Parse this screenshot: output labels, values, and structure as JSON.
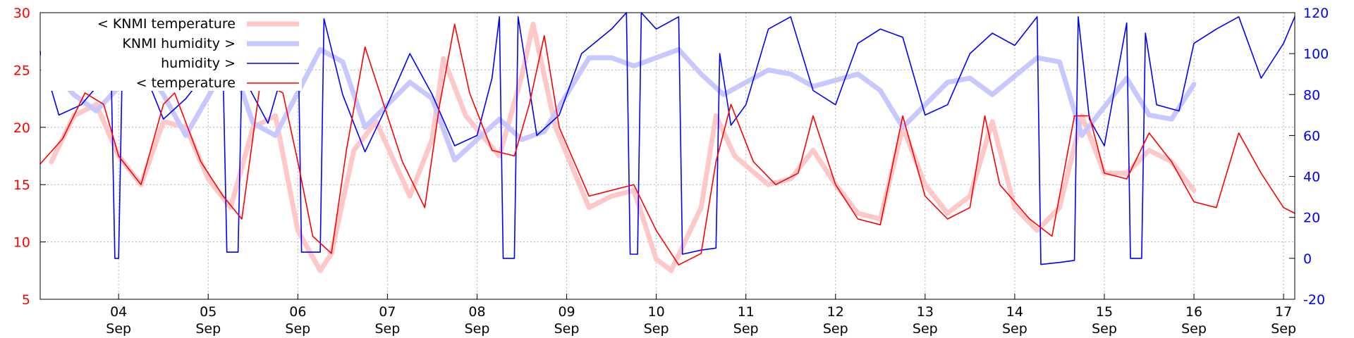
{
  "chart_data": {
    "type": "line",
    "title": "",
    "grid": true,
    "legend_placement": "top-left",
    "x_range": [
      "2023-09-03 03:00",
      "2023-09-17 03:00"
    ],
    "x_ticks": [
      {
        "date": "2023-09-04",
        "day": "04",
        "month": "Sep"
      },
      {
        "date": "2023-09-05",
        "day": "05",
        "month": "Sep"
      },
      {
        "date": "2023-09-06",
        "day": "06",
        "month": "Sep"
      },
      {
        "date": "2023-09-07",
        "day": "07",
        "month": "Sep"
      },
      {
        "date": "2023-09-08",
        "day": "08",
        "month": "Sep"
      },
      {
        "date": "2023-09-09",
        "day": "09",
        "month": "Sep"
      },
      {
        "date": "2023-09-10",
        "day": "10",
        "month": "Sep"
      },
      {
        "date": "2023-09-11",
        "day": "11",
        "month": "Sep"
      },
      {
        "date": "2023-09-12",
        "day": "12",
        "month": "Sep"
      },
      {
        "date": "2023-09-13",
        "day": "13",
        "month": "Sep"
      },
      {
        "date": "2023-09-14",
        "day": "14",
        "month": "Sep"
      },
      {
        "date": "2023-09-15",
        "day": "15",
        "month": "Sep"
      },
      {
        "date": "2023-09-16",
        "day": "16",
        "month": "Sep"
      },
      {
        "date": "2023-09-17",
        "day": "17",
        "month": "Sep"
      }
    ],
    "y_left": {
      "ylim": [
        5,
        30
      ],
      "ticks": [
        5,
        10,
        15,
        20,
        25,
        30
      ],
      "color": "#ff0000"
    },
    "y_right": {
      "ylim": [
        -20,
        120
      ],
      "ticks": [
        -20,
        0,
        20,
        40,
        60,
        80,
        100,
        120
      ],
      "color": "#0000ff"
    },
    "series": [
      {
        "name": "< KNMI temperature",
        "axis": "left",
        "color": "#ffc8c8",
        "style": "thick",
        "points": [
          [
            "2023-09-03 06:00",
            17
          ],
          [
            "2023-09-03 12:00",
            21
          ],
          [
            "2023-09-03 18:00",
            22
          ],
          [
            "2023-09-04 00:00",
            17.5
          ],
          [
            "2023-09-04 06:00",
            15
          ],
          [
            "2023-09-04 12:00",
            20.5
          ],
          [
            "2023-09-04 18:00",
            20
          ],
          [
            "2023-09-05 00:00",
            15.5
          ],
          [
            "2023-09-05 06:00",
            13
          ],
          [
            "2023-09-05 12:00",
            20
          ],
          [
            "2023-09-05 18:00",
            21
          ],
          [
            "2023-09-06 00:00",
            11
          ],
          [
            "2023-09-06 06:00",
            7.5
          ],
          [
            "2023-09-06 09:00",
            9
          ],
          [
            "2023-09-06 15:00",
            18
          ],
          [
            "2023-09-06 21:00",
            20.5
          ],
          [
            "2023-09-07 06:00",
            14
          ],
          [
            "2023-09-07 12:00",
            19
          ],
          [
            "2023-09-07 15:00",
            26
          ],
          [
            "2023-09-07 21:00",
            21
          ],
          [
            "2023-09-08 06:00",
            17.5
          ],
          [
            "2023-09-08 12:00",
            24.5
          ],
          [
            "2023-09-08 15:00",
            29
          ],
          [
            "2023-09-08 21:00",
            20
          ],
          [
            "2023-09-09 06:00",
            13
          ],
          [
            "2023-09-09 12:00",
            14
          ],
          [
            "2023-09-09 18:00",
            14.5
          ],
          [
            "2023-09-10 00:00",
            8.5
          ],
          [
            "2023-09-10 04:00",
            7.5
          ],
          [
            "2023-09-10 12:00",
            13
          ],
          [
            "2023-09-10 16:00",
            21
          ],
          [
            "2023-09-10 21:00",
            17.5
          ],
          [
            "2023-09-11 06:00",
            15
          ],
          [
            "2023-09-11 12:00",
            15.5
          ],
          [
            "2023-09-11 18:00",
            18
          ],
          [
            "2023-09-12 00:00",
            15
          ],
          [
            "2023-09-12 06:00",
            12.5
          ],
          [
            "2023-09-12 12:00",
            12
          ],
          [
            "2023-09-12 18:00",
            20
          ],
          [
            "2023-09-13 00:00",
            15
          ],
          [
            "2023-09-13 06:00",
            12.5
          ],
          [
            "2023-09-13 12:00",
            14
          ],
          [
            "2023-09-13 18:00",
            20.5
          ],
          [
            "2023-09-14 00:00",
            13
          ],
          [
            "2023-09-14 06:00",
            11
          ],
          [
            "2023-09-14 12:00",
            13
          ],
          [
            "2023-09-14 18:00",
            21
          ],
          [
            "2023-09-15 00:00",
            16
          ],
          [
            "2023-09-15 06:00",
            16
          ],
          [
            "2023-09-15 12:00",
            18
          ],
          [
            "2023-09-15 18:00",
            17
          ],
          [
            "2023-09-16 00:00",
            14.5
          ]
        ]
      },
      {
        "name": "KNMI humidity >",
        "axis": "right",
        "color": "#c8c8ff",
        "style": "thick",
        "points": [
          [
            "2023-09-03 06:00",
            92
          ],
          [
            "2023-09-03 12:00",
            80
          ],
          [
            "2023-09-03 18:00",
            72
          ],
          [
            "2023-09-04 06:00",
            95
          ],
          [
            "2023-09-04 12:00",
            80
          ],
          [
            "2023-09-04 18:00",
            60
          ],
          [
            "2023-09-05 06:00",
            98
          ],
          [
            "2023-09-05 12:00",
            66
          ],
          [
            "2023-09-05 18:00",
            60
          ],
          [
            "2023-09-06 06:00",
            102
          ],
          [
            "2023-09-06 12:00",
            96
          ],
          [
            "2023-09-06 18:00",
            64
          ],
          [
            "2023-09-07 06:00",
            86
          ],
          [
            "2023-09-07 12:00",
            78
          ],
          [
            "2023-09-07 18:00",
            48
          ],
          [
            "2023-09-08 06:00",
            68
          ],
          [
            "2023-09-08 12:00",
            58
          ],
          [
            "2023-09-08 18:00",
            62
          ],
          [
            "2023-09-09 06:00",
            98
          ],
          [
            "2023-09-09 12:00",
            98
          ],
          [
            "2023-09-09 18:00",
            94
          ],
          [
            "2023-09-10 06:00",
            102
          ],
          [
            "2023-09-10 12:00",
            90
          ],
          [
            "2023-09-10 18:00",
            80
          ],
          [
            "2023-09-11 06:00",
            92
          ],
          [
            "2023-09-11 12:00",
            90
          ],
          [
            "2023-09-11 18:00",
            84
          ],
          [
            "2023-09-12 06:00",
            90
          ],
          [
            "2023-09-12 12:00",
            82
          ],
          [
            "2023-09-12 18:00",
            64
          ],
          [
            "2023-09-13 06:00",
            86
          ],
          [
            "2023-09-13 12:00",
            88
          ],
          [
            "2023-09-13 18:00",
            80
          ],
          [
            "2023-09-14 06:00",
            98
          ],
          [
            "2023-09-14 12:00",
            96
          ],
          [
            "2023-09-14 18:00",
            60
          ],
          [
            "2023-09-15 06:00",
            88
          ],
          [
            "2023-09-15 12:00",
            70
          ],
          [
            "2023-09-15 18:00",
            68
          ],
          [
            "2023-09-16 00:00",
            85
          ]
        ]
      },
      {
        "name": "humidity >",
        "axis": "right",
        "color": "#0000ff",
        "style": "thin",
        "points": [
          [
            "2023-09-03 03:00",
            101
          ],
          [
            "2023-09-03 08:00",
            70
          ],
          [
            "2023-09-03 14:00",
            75
          ],
          [
            "2023-09-03 22:00",
            92
          ],
          [
            "2023-09-03 23:00",
            0
          ],
          [
            "2023-09-04 00:00",
            0
          ],
          [
            "2023-09-04 01:00",
            96
          ],
          [
            "2023-09-04 06:00",
            95
          ],
          [
            "2023-09-04 12:00",
            68
          ],
          [
            "2023-09-04 18:00",
            78
          ],
          [
            "2023-09-05 00:00",
            92
          ],
          [
            "2023-09-05 04:00",
            90
          ],
          [
            "2023-09-05 05:00",
            3
          ],
          [
            "2023-09-05 08:00",
            3
          ],
          [
            "2023-09-05 09:00",
            90
          ],
          [
            "2023-09-05 16:00",
            66
          ],
          [
            "2023-09-06 00:00",
            117
          ],
          [
            "2023-09-06 01:00",
            3
          ],
          [
            "2023-09-06 06:00",
            3
          ],
          [
            "2023-09-06 07:00",
            117
          ],
          [
            "2023-09-06 12:00",
            80
          ],
          [
            "2023-09-06 18:00",
            52
          ],
          [
            "2023-09-07 00:00",
            75
          ],
          [
            "2023-09-07 06:00",
            100
          ],
          [
            "2023-09-07 12:00",
            80
          ],
          [
            "2023-09-07 18:00",
            55
          ],
          [
            "2023-09-08 00:00",
            60
          ],
          [
            "2023-09-08 04:00",
            88
          ],
          [
            "2023-09-08 06:00",
            118
          ],
          [
            "2023-09-08 07:00",
            0
          ],
          [
            "2023-09-08 10:00",
            0
          ],
          [
            "2023-09-08 11:00",
            118
          ],
          [
            "2023-09-08 16:00",
            60
          ],
          [
            "2023-09-08 22:00",
            70
          ],
          [
            "2023-09-09 04:00",
            100
          ],
          [
            "2023-09-09 12:00",
            112
          ],
          [
            "2023-09-09 16:00",
            120
          ],
          [
            "2023-09-09 17:00",
            2
          ],
          [
            "2023-09-09 19:00",
            2
          ],
          [
            "2023-09-09 20:00",
            120
          ],
          [
            "2023-09-10 00:00",
            112
          ],
          [
            "2023-09-10 06:00",
            118
          ],
          [
            "2023-09-10 07:00",
            2
          ],
          [
            "2023-09-10 12:00",
            4
          ],
          [
            "2023-09-10 16:00",
            5
          ],
          [
            "2023-09-10 17:00",
            100
          ],
          [
            "2023-09-10 20:00",
            65
          ],
          [
            "2023-09-11 00:00",
            75
          ],
          [
            "2023-09-11 06:00",
            112
          ],
          [
            "2023-09-11 12:00",
            118
          ],
          [
            "2023-09-11 18:00",
            82
          ],
          [
            "2023-09-12 00:00",
            75
          ],
          [
            "2023-09-12 06:00",
            105
          ],
          [
            "2023-09-12 12:00",
            112
          ],
          [
            "2023-09-12 18:00",
            108
          ],
          [
            "2023-09-13 00:00",
            70
          ],
          [
            "2023-09-13 06:00",
            75
          ],
          [
            "2023-09-13 12:00",
            100
          ],
          [
            "2023-09-13 18:00",
            110
          ],
          [
            "2023-09-14 00:00",
            104
          ],
          [
            "2023-09-14 06:00",
            118
          ],
          [
            "2023-09-14 07:00",
            -3
          ],
          [
            "2023-09-14 12:00",
            -2
          ],
          [
            "2023-09-14 16:00",
            -1
          ],
          [
            "2023-09-14 17:00",
            118
          ],
          [
            "2023-09-14 20:00",
            68
          ],
          [
            "2023-09-15 00:00",
            55
          ],
          [
            "2023-09-15 06:00",
            115
          ],
          [
            "2023-09-15 07:00",
            0
          ],
          [
            "2023-09-15 10:00",
            0
          ],
          [
            "2023-09-15 11:00",
            110
          ],
          [
            "2023-09-15 14:00",
            75
          ],
          [
            "2023-09-15 20:00",
            72
          ],
          [
            "2023-09-16 00:00",
            105
          ],
          [
            "2023-09-16 06:00",
            112
          ],
          [
            "2023-09-16 12:00",
            118
          ],
          [
            "2023-09-16 18:00",
            88
          ],
          [
            "2023-09-17 00:00",
            105
          ],
          [
            "2023-09-17 03:00",
            118
          ]
        ]
      },
      {
        "name": "< temperature",
        "axis": "left",
        "color": "#ff0000",
        "style": "thin",
        "points": [
          [
            "2023-09-03 03:00",
            16.8
          ],
          [
            "2023-09-03 09:00",
            19
          ],
          [
            "2023-09-03 15:00",
            23
          ],
          [
            "2023-09-03 20:00",
            22
          ],
          [
            "2023-09-04 00:00",
            17.5
          ],
          [
            "2023-09-04 06:00",
            15
          ],
          [
            "2023-09-04 12:00",
            22
          ],
          [
            "2023-09-04 15:00",
            23
          ],
          [
            "2023-09-04 22:00",
            17
          ],
          [
            "2023-09-05 04:00",
            14
          ],
          [
            "2023-09-05 09:00",
            12
          ],
          [
            "2023-09-05 14:00",
            24
          ],
          [
            "2023-09-05 20:00",
            23
          ],
          [
            "2023-09-06 00:00",
            17
          ],
          [
            "2023-09-06 04:00",
            10.5
          ],
          [
            "2023-09-06 09:00",
            9
          ],
          [
            "2023-09-06 13:00",
            18
          ],
          [
            "2023-09-06 18:00",
            27
          ],
          [
            "2023-09-06 22:00",
            23
          ],
          [
            "2023-09-07 04:00",
            17
          ],
          [
            "2023-09-07 10:00",
            13
          ],
          [
            "2023-09-07 14:00",
            22
          ],
          [
            "2023-09-07 18:00",
            29
          ],
          [
            "2023-09-07 22:00",
            23
          ],
          [
            "2023-09-08 04:00",
            18
          ],
          [
            "2023-09-08 10:00",
            17.5
          ],
          [
            "2023-09-08 14:00",
            22
          ],
          [
            "2023-09-08 18:00",
            28
          ],
          [
            "2023-09-08 22:00",
            20
          ],
          [
            "2023-09-09 06:00",
            14
          ],
          [
            "2023-09-09 12:00",
            14.5
          ],
          [
            "2023-09-09 18:00",
            15
          ],
          [
            "2023-09-10 00:00",
            11
          ],
          [
            "2023-09-10 06:00",
            8
          ],
          [
            "2023-09-10 12:00",
            9
          ],
          [
            "2023-09-10 16:00",
            17
          ],
          [
            "2023-09-10 20:00",
            22
          ],
          [
            "2023-09-11 02:00",
            17
          ],
          [
            "2023-09-11 08:00",
            15
          ],
          [
            "2023-09-11 14:00",
            16
          ],
          [
            "2023-09-11 18:00",
            21
          ],
          [
            "2023-09-12 00:00",
            15
          ],
          [
            "2023-09-12 06:00",
            12
          ],
          [
            "2023-09-12 12:00",
            11.5
          ],
          [
            "2023-09-12 18:00",
            21
          ],
          [
            "2023-09-13 00:00",
            14
          ],
          [
            "2023-09-13 06:00",
            12
          ],
          [
            "2023-09-13 12:00",
            13
          ],
          [
            "2023-09-13 16:00",
            21
          ],
          [
            "2023-09-13 20:00",
            15
          ],
          [
            "2023-09-14 04:00",
            12
          ],
          [
            "2023-09-14 10:00",
            10.5
          ],
          [
            "2023-09-14 16:00",
            21
          ],
          [
            "2023-09-14 20:00",
            21
          ],
          [
            "2023-09-15 00:00",
            16
          ],
          [
            "2023-09-15 06:00",
            15.5
          ],
          [
            "2023-09-15 12:00",
            19.5
          ],
          [
            "2023-09-15 18:00",
            17
          ],
          [
            "2023-09-16 00:00",
            13.5
          ],
          [
            "2023-09-16 06:00",
            13
          ],
          [
            "2023-09-16 12:00",
            19.5
          ],
          [
            "2023-09-16 18:00",
            16
          ],
          [
            "2023-09-17 00:00",
            13
          ],
          [
            "2023-09-17 03:00",
            12.5
          ]
        ]
      }
    ]
  }
}
